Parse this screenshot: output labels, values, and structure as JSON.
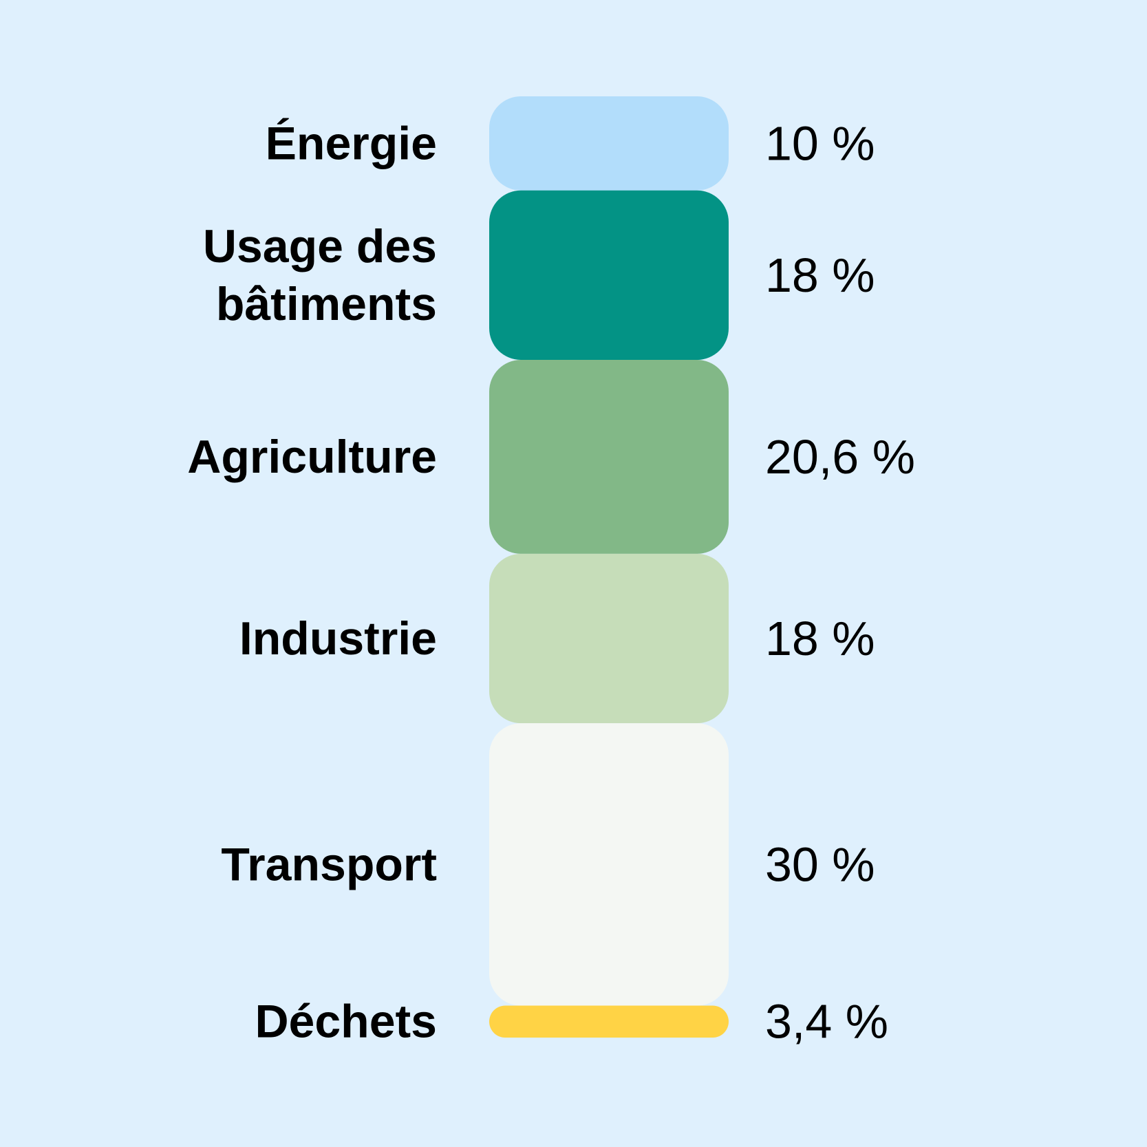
{
  "chart_data": {
    "type": "bar",
    "orientation": "stacked-vertical",
    "categories": [
      "Énergie",
      "Usage des bâtiments",
      "Agriculture",
      "Industrie",
      "Transport",
      "Déchets"
    ],
    "category_lines": [
      [
        "Énergie"
      ],
      [
        "Usage des",
        "bâtiments"
      ],
      [
        "Agriculture"
      ],
      [
        "Industrie"
      ],
      [
        "Transport"
      ],
      [
        "Déchets"
      ]
    ],
    "values": [
      10,
      18,
      20.6,
      18,
      30,
      3.4
    ],
    "value_labels": [
      "10 %",
      "18 %",
      "20,6 %",
      "18 %",
      "30 %",
      "3,4 %"
    ],
    "colors": [
      "#b2ddfb",
      "#039385",
      "#82b887",
      "#c6ddb9",
      "#f4f7f3",
      "#ffd345"
    ],
    "unit": "%",
    "legend": "none",
    "grid": false
  },
  "background_color": "#dff0fd"
}
